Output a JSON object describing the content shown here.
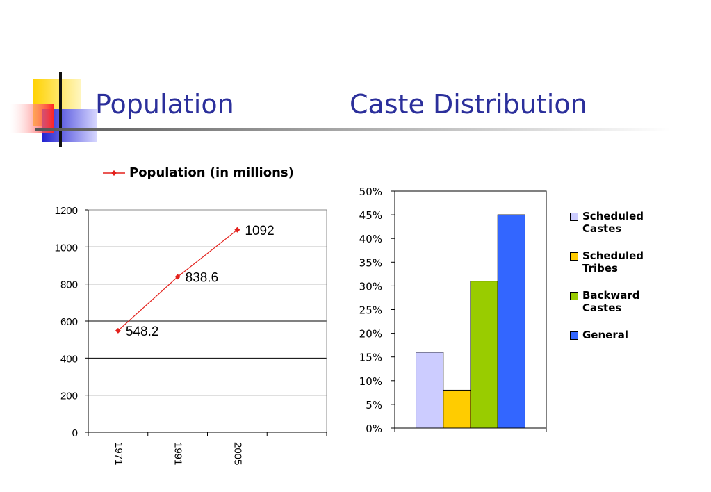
{
  "slide": {
    "title_left": "Population",
    "title_right": "Caste Distribution"
  },
  "chart_data": [
    {
      "type": "line",
      "title": "",
      "legend": "Population (in millions)",
      "legend_position": "top",
      "categories": [
        "1971",
        "1991",
        "2005"
      ],
      "series": [
        {
          "name": "Population (in millions)",
          "values": [
            548.2,
            838.6,
            1092
          ]
        }
      ],
      "data_labels": [
        "548.2",
        "838.6",
        "1092"
      ],
      "ylim": [
        0,
        1200
      ],
      "yticks": [
        0,
        200,
        400,
        600,
        800,
        1000,
        1200
      ],
      "grid": true,
      "color": "#e3211c"
    },
    {
      "type": "bar",
      "title": "",
      "legend_position": "right",
      "series": [
        {
          "name": "Scheduled Castes",
          "value": 16,
          "color": "#ccccff"
        },
        {
          "name": "Scheduled Tribes",
          "value": 8,
          "color": "#ffcc00"
        },
        {
          "name": "Backward Castes",
          "value": 31,
          "color": "#99cc00"
        },
        {
          "name": "General",
          "value": 45,
          "color": "#3366ff"
        }
      ],
      "ylim": [
        0,
        50
      ],
      "yticks": [
        "0%",
        "5%",
        "10%",
        "15%",
        "20%",
        "25%",
        "30%",
        "35%",
        "40%",
        "45%",
        "50%"
      ],
      "grid": false
    }
  ]
}
